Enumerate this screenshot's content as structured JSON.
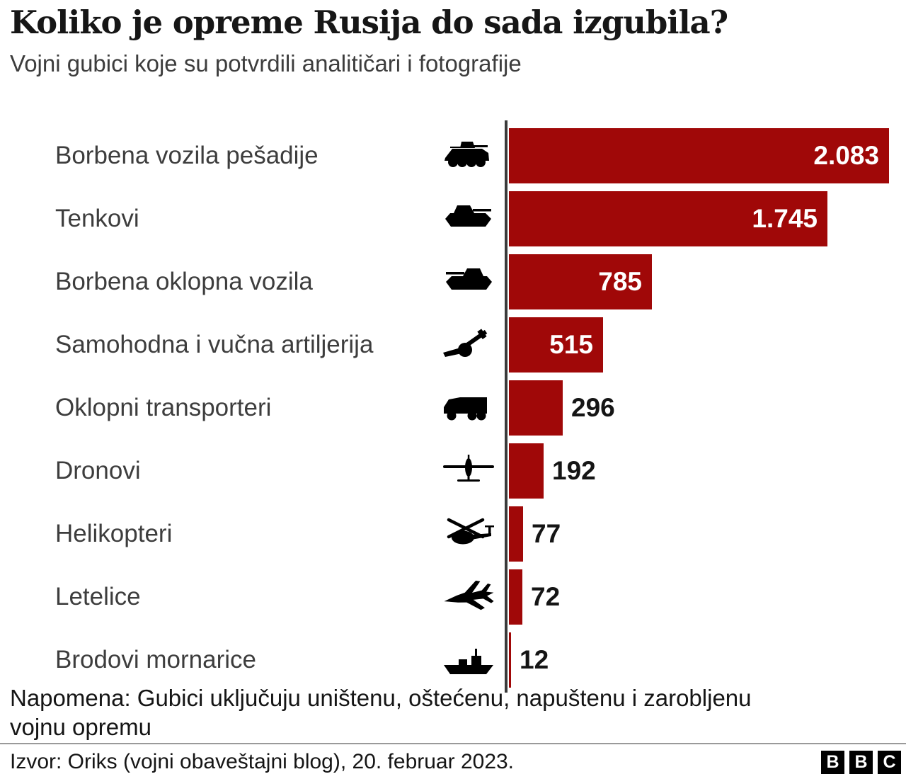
{
  "header": {
    "title": "Koliko je opreme Rusija do sada izgubila?",
    "subtitle": "Vojni gubici koje su potvrdili analitičari i fotografije"
  },
  "chart_data": {
    "type": "bar",
    "orientation": "horizontal",
    "title": "Koliko je opreme Rusija do sada izgubila?",
    "subtitle": "Vojni gubici koje su potvrdili analitičari i fotografije",
    "categories": [
      "Borbena vozila pešadije",
      "Tenkovi",
      "Borbena oklopna vozila",
      "Samohodna i vučna artiljerija",
      "Oklopni transporteri",
      "Dronovi",
      "Helikopteri",
      "Letelice",
      "Brodovi mornarice"
    ],
    "values": [
      2083,
      1745,
      785,
      515,
      296,
      192,
      77,
      72,
      12
    ],
    "value_labels": [
      "2.083",
      "1.745",
      "785",
      "515",
      "296",
      "192",
      "77",
      "72",
      "12"
    ],
    "icons": [
      "infantry-fighting-vehicle-icon",
      "tank-icon",
      "armoured-fighting-vehicle-icon",
      "artillery-icon",
      "armoured-truck-icon",
      "drone-icon",
      "helicopter-icon",
      "fighter-jet-icon",
      "navy-ship-icon"
    ],
    "xlim": [
      0,
      2150
    ],
    "grid": false,
    "legend": false,
    "bar_color": "#A00808",
    "axis_color": "#3a3a3a",
    "value_color_inside": "#ffffff",
    "value_color_outside": "#151515"
  },
  "footer": {
    "note_line1": "Napomena: Gubici uključuju uništenu, oštećenu, napuštenu i zarobljenu",
    "note_line2": "vojnu opremu",
    "source": "Izvor: Oriks (vojni obaveštajni blog), 20. februar 2023.",
    "logo_letters": [
      "B",
      "B",
      "C"
    ]
  }
}
